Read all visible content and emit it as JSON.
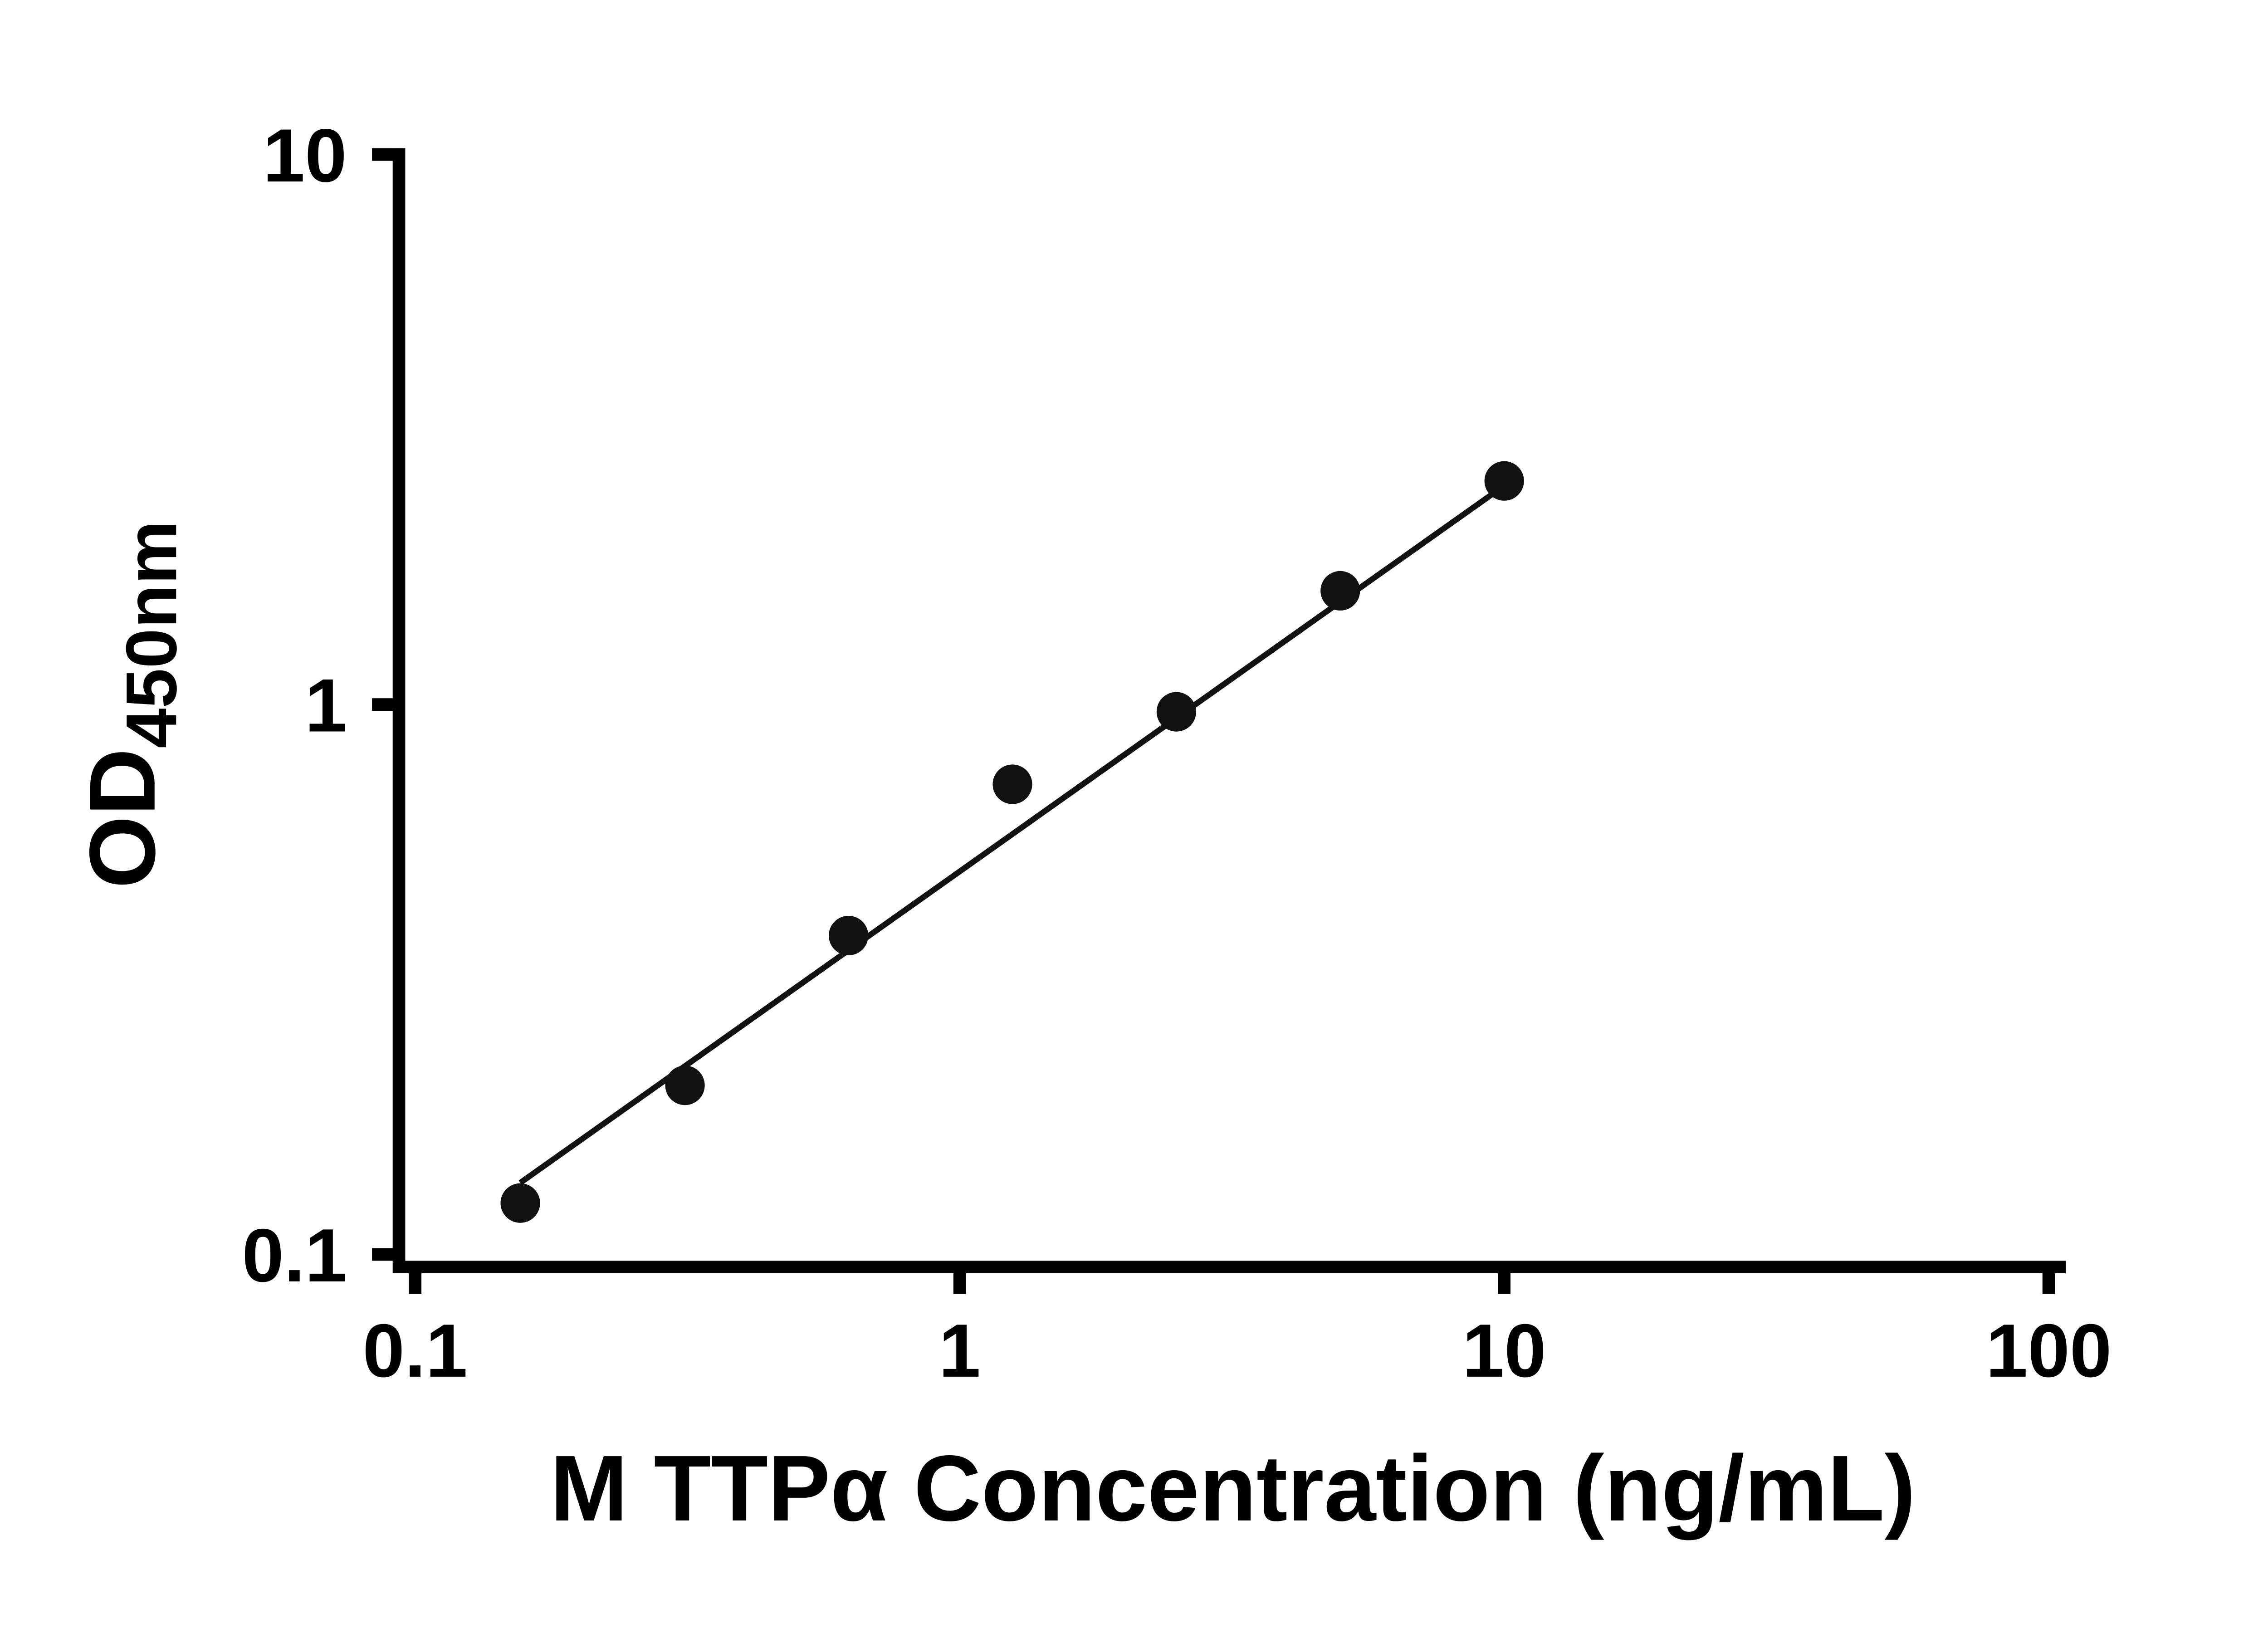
{
  "chart_data": {
    "type": "scatter",
    "title": "",
    "xlabel": "M TTPα Concentration (ng/mL)",
    "ylabel_main": "OD",
    "ylabel_sub": "450nm",
    "x_scale": "log10",
    "y_scale": "log10",
    "xlim": [
      0.1,
      100
    ],
    "ylim": [
      0.1,
      10
    ],
    "grid": false,
    "legend": null,
    "x_ticks": [
      {
        "value": 0.1,
        "label": "0.1"
      },
      {
        "value": 1,
        "label": "1"
      },
      {
        "value": 10,
        "label": "10"
      },
      {
        "value": 100,
        "label": "100"
      }
    ],
    "y_ticks": [
      {
        "value": 0.1,
        "label": "0.1"
      },
      {
        "value": 1,
        "label": "1"
      },
      {
        "value": 10,
        "label": "10"
      }
    ],
    "points": [
      {
        "x": 0.156,
        "y": 0.124
      },
      {
        "x": 0.313,
        "y": 0.203
      },
      {
        "x": 0.625,
        "y": 0.38
      },
      {
        "x": 1.25,
        "y": 0.716
      },
      {
        "x": 2.5,
        "y": 0.97
      },
      {
        "x": 5,
        "y": 1.61
      },
      {
        "x": 10,
        "y": 2.55
      }
    ],
    "fit_line": {
      "x1": 0.156,
      "y1": 0.135,
      "x2": 10,
      "y2": 2.5
    },
    "marker_color": "#111111",
    "line_color": "#111111",
    "axis_color": "#000000",
    "background": "#ffffff"
  }
}
